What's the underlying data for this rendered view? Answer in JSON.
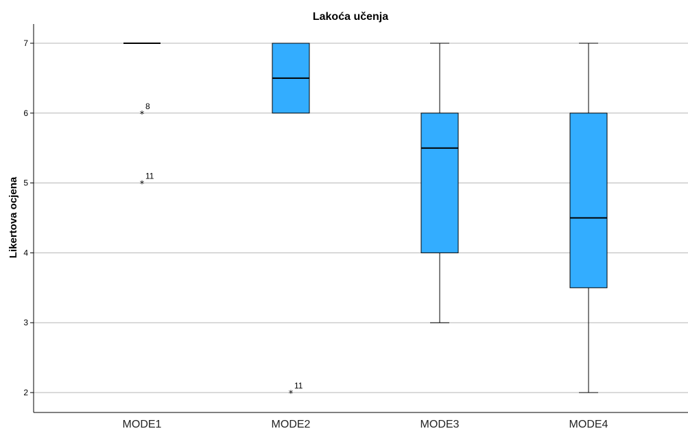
{
  "chart_data": {
    "type": "boxplot",
    "title": "Lakoća učenja",
    "xlabel": "",
    "ylabel": "Likertova ocjena",
    "ylim": [
      1.7,
      7.3
    ],
    "yticks": [
      2,
      3,
      4,
      5,
      6,
      7
    ],
    "grid": true,
    "box_color": "#33adff",
    "categories": [
      "MODE1",
      "MODE2",
      "MODE3",
      "MODE4"
    ],
    "boxes": [
      {
        "category": "MODE1",
        "min": 7,
        "q1": 7,
        "median": 7,
        "q3": 7,
        "max": 7,
        "outliers": [
          {
            "value": 6,
            "label": "8"
          },
          {
            "value": 5,
            "label": "11"
          }
        ]
      },
      {
        "category": "MODE2",
        "min": 6,
        "q1": 6,
        "median": 6.5,
        "q3": 7,
        "max": 7,
        "outliers": [
          {
            "value": 2,
            "label": "11"
          }
        ]
      },
      {
        "category": "MODE3",
        "min": 3,
        "q1": 4,
        "median": 5.5,
        "q3": 6,
        "max": 7,
        "outliers": []
      },
      {
        "category": "MODE4",
        "min": 2,
        "q1": 3.5,
        "median": 4.5,
        "q3": 6,
        "max": 7,
        "outliers": []
      }
    ]
  }
}
